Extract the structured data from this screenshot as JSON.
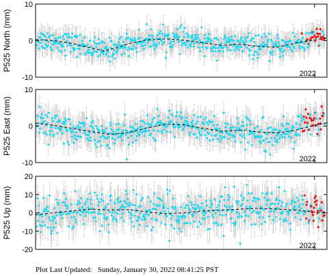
{
  "footer": {
    "label": "Plot Last Updated:",
    "value": "Sunday, January 30, 2022 08:41:25 PST"
  },
  "colors": {
    "normal_points": "#22d8f0",
    "rapid_points": "#ee1111",
    "error_bars": "#c8c8c8",
    "model_line": "#000000"
  },
  "chart_data": [
    {
      "type": "scatter",
      "station": "P525",
      "ylabel": "P525 North (mm)",
      "ylim": [
        -10,
        10
      ],
      "yticks": [
        -10,
        0,
        10
      ],
      "xlim": [
        2017.5,
        2022.2
      ],
      "x_tick_label": "2022",
      "x_tick_value": 2022.0,
      "grid": false,
      "model_trend": [
        [
          2017.5,
          0.3
        ],
        [
          2017.8,
          0.0
        ],
        [
          2018.1,
          -0.8
        ],
        [
          2018.4,
          -2.0
        ],
        [
          2018.6,
          -2.8
        ],
        [
          2018.8,
          -2.0
        ],
        [
          2019.0,
          -0.8
        ],
        [
          2019.3,
          0.2
        ],
        [
          2019.6,
          0.5
        ],
        [
          2019.9,
          0.1
        ],
        [
          2020.2,
          -0.6
        ],
        [
          2020.5,
          -1.3
        ],
        [
          2020.8,
          -1.0
        ],
        [
          2021.1,
          -1.6
        ],
        [
          2021.4,
          -1.8
        ],
        [
          2021.7,
          -0.6
        ],
        [
          2022.0,
          0.2
        ],
        [
          2022.2,
          0.8
        ]
      ],
      "scatter_sd": 1.5,
      "error_bar_mm": 2.5,
      "rapid_from": 2021.78
    },
    {
      "type": "scatter",
      "station": "P525",
      "ylabel": "P525 East (mm)",
      "ylim": [
        -10,
        10
      ],
      "yticks": [
        -10,
        0,
        10
      ],
      "xlim": [
        2017.5,
        2022.2
      ],
      "x_tick_label": "2022",
      "x_tick_value": 2022.0,
      "grid": false,
      "model_trend": [
        [
          2017.5,
          0.8
        ],
        [
          2017.8,
          0.2
        ],
        [
          2018.1,
          -0.7
        ],
        [
          2018.4,
          -1.5
        ],
        [
          2018.7,
          -2.3
        ],
        [
          2019.0,
          -1.8
        ],
        [
          2019.3,
          -0.5
        ],
        [
          2019.6,
          0.5
        ],
        [
          2019.9,
          0.3
        ],
        [
          2020.2,
          -0.6
        ],
        [
          2020.5,
          -1.4
        ],
        [
          2020.8,
          -1.1
        ],
        [
          2021.1,
          -1.6
        ],
        [
          2021.4,
          -1.9
        ],
        [
          2021.7,
          -1.1
        ],
        [
          2022.0,
          0.2
        ],
        [
          2022.2,
          0.9
        ]
      ],
      "scatter_sd": 1.8,
      "error_bar_mm": 3.0,
      "rapid_from": 2021.78
    },
    {
      "type": "scatter",
      "station": "P525",
      "ylabel": "P525 Up (mm)",
      "ylim": [
        -20,
        20
      ],
      "yticks": [
        -20,
        -10,
        0,
        10,
        20
      ],
      "xlim": [
        2017.5,
        2022.2
      ],
      "x_tick_label": "2022",
      "x_tick_value": 2022.0,
      "grid": false,
      "model_trend": [
        [
          2017.5,
          -1.0
        ],
        [
          2017.8,
          0.0
        ],
        [
          2018.1,
          1.0
        ],
        [
          2018.4,
          2.0
        ],
        [
          2018.7,
          1.5
        ],
        [
          2019.0,
          1.8
        ],
        [
          2019.3,
          0.5
        ],
        [
          2019.6,
          -0.5
        ],
        [
          2019.9,
          0.0
        ],
        [
          2020.2,
          1.0
        ],
        [
          2020.5,
          1.5
        ],
        [
          2020.8,
          2.0
        ],
        [
          2021.1,
          2.5
        ],
        [
          2021.4,
          2.0
        ],
        [
          2021.7,
          1.5
        ],
        [
          2022.0,
          0.5
        ],
        [
          2022.2,
          0.0
        ]
      ],
      "scatter_sd": 5.0,
      "error_bar_mm": 7.0,
      "rapid_from": 2021.78
    }
  ]
}
